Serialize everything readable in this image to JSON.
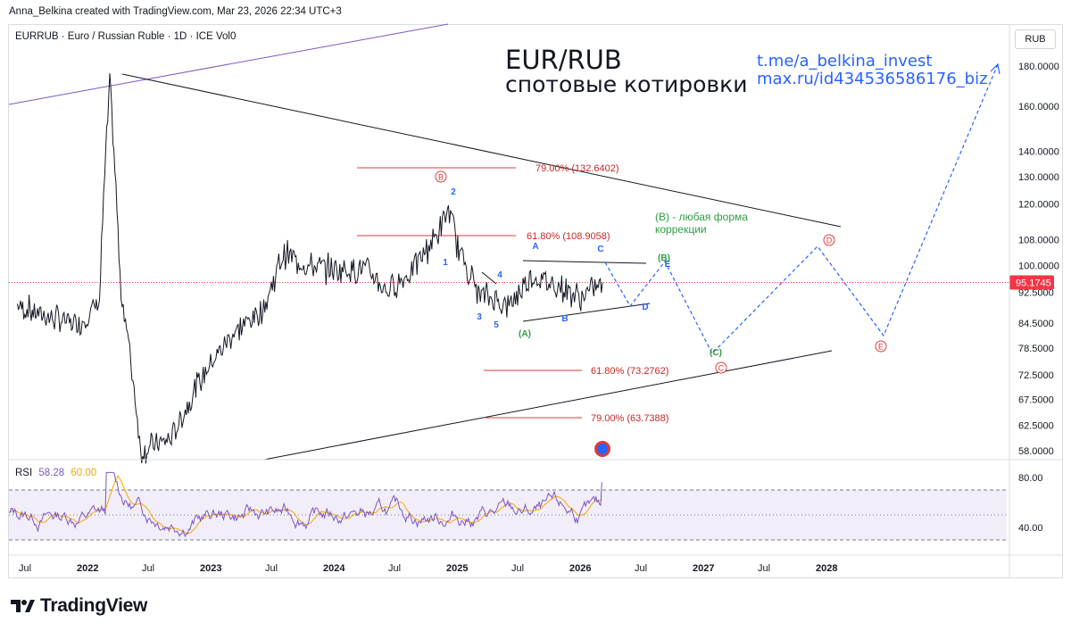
{
  "header": {
    "author_line": "Anna_Belkina created with TradingView.com, Mar 23, 2026 22:34 UTC+3",
    "symbol_line": "EURRUB · Euro / Russian Ruble · 1D · ICE  Vol0",
    "currency_button": "RUB"
  },
  "annotations": {
    "title": "EUR/RUB",
    "subtitle": "спотовые котировки",
    "link_1": "t.me/a_belkina_invest",
    "link_2": "max.ru/id434536586176_biz",
    "comment_line1": "(B) - любая форма",
    "comment_line2": "коррекции",
    "fib_levels": [
      {
        "label": "79.00% (132.6402)",
        "price": 132.64
      },
      {
        "label": "61.80% (108.9058)",
        "price": 108.91
      },
      {
        "label": "61.80% (73.2762)",
        "price": 73.28
      },
      {
        "label": "79.00% (63.7388)",
        "price": 63.74
      }
    ],
    "wave_labels": [
      {
        "text": "B",
        "style": "circle",
        "color": "#e03a3a"
      },
      {
        "text": "2",
        "color": "#2962ff"
      },
      {
        "text": "1",
        "color": "#2962ff"
      },
      {
        "text": "4",
        "color": "#2962ff"
      },
      {
        "text": "3",
        "color": "#2962ff"
      },
      {
        "text": "5",
        "color": "#2962ff"
      },
      {
        "text": "(A)",
        "color": "#2e9e44"
      },
      {
        "text": "A",
        "color": "#2962ff"
      },
      {
        "text": "B",
        "color": "#2962ff"
      },
      {
        "text": "C",
        "color": "#2962ff"
      },
      {
        "text": "D",
        "color": "#2962ff"
      },
      {
        "text": "E",
        "color": "#2962ff"
      },
      {
        "text": "(B)",
        "color": "#2e9e44"
      },
      {
        "text": "(C)",
        "color": "#2e9e44"
      },
      {
        "text": "C",
        "style": "circle",
        "color": "#e03a3a"
      },
      {
        "text": "D",
        "style": "circle",
        "color": "#e03a3a"
      },
      {
        "text": "E",
        "style": "circle",
        "color": "#e03a3a"
      }
    ]
  },
  "rsi": {
    "label": "RSI",
    "value": "58.28",
    "ma_value": "60.00",
    "ticks": [
      "80.00",
      "40.00"
    ],
    "upper_band": 70,
    "lower_band": 30
  },
  "chart_data": {
    "type": "line",
    "scale": "log",
    "y_ticks": [
      "180.0000",
      "160.0000",
      "140.0000",
      "130.0000",
      "120.0000",
      "108.0000",
      "100.0000",
      "92.5000",
      "84.5000",
      "78.5000",
      "72.5000",
      "67.5000",
      "62.5000",
      "58.0000"
    ],
    "last_price": "95.1745",
    "x_ticks": [
      "Jul",
      "2022",
      "Jul",
      "2023",
      "Jul",
      "2024",
      "Jul",
      "2025",
      "Jul",
      "2026",
      "Jul",
      "2027",
      "Jul",
      "2028"
    ],
    "series": [
      {
        "values": [
          {
            "x": "2021-06",
            "y": 89
          },
          {
            "x": "2021-09",
            "y": 86
          },
          {
            "x": "2021-12",
            "y": 84
          },
          {
            "x": "2022-02",
            "y": 90
          },
          {
            "x": "2022-03",
            "y": 170
          },
          {
            "x": "2022-04",
            "y": 95
          },
          {
            "x": "2022-06",
            "y": 58
          },
          {
            "x": "2022-09",
            "y": 60
          },
          {
            "x": "2022-12",
            "y": 72
          },
          {
            "x": "2023-03",
            "y": 82
          },
          {
            "x": "2023-06",
            "y": 88
          },
          {
            "x": "2023-08",
            "y": 104
          },
          {
            "x": "2023-10",
            "y": 100
          },
          {
            "x": "2024-01",
            "y": 99
          },
          {
            "x": "2024-04",
            "y": 99
          },
          {
            "x": "2024-06",
            "y": 93
          },
          {
            "x": "2024-08",
            "y": 97
          },
          {
            "x": "2024-11",
            "y": 110
          },
          {
            "x": "2024-12",
            "y": 118
          },
          {
            "x": "2025-01",
            "y": 105
          },
          {
            "x": "2025-03",
            "y": 92
          },
          {
            "x": "2025-06",
            "y": 89
          },
          {
            "x": "2025-08",
            "y": 97
          },
          {
            "x": "2025-10",
            "y": 95
          },
          {
            "x": "2026-01",
            "y": 91
          },
          {
            "x": "2026-03",
            "y": 95.17
          }
        ]
      }
    ]
  }
}
